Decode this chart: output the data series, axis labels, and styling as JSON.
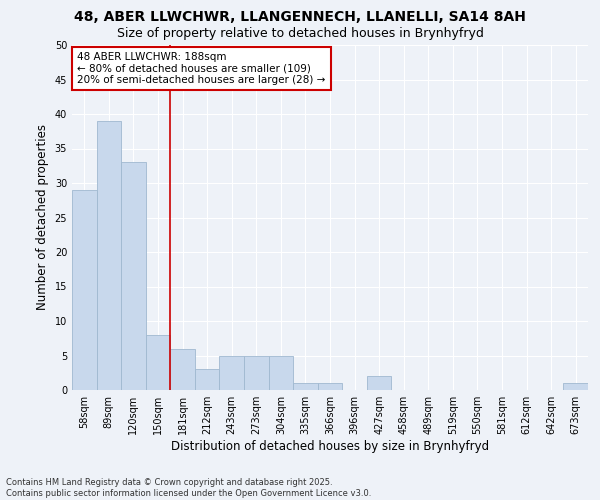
{
  "title1": "48, ABER LLWCHWR, LLANGENNECH, LLANELLI, SA14 8AH",
  "title2": "Size of property relative to detached houses in Brynhyfryd",
  "xlabel": "Distribution of detached houses by size in Brynhyfryd",
  "ylabel": "Number of detached properties",
  "categories": [
    "58sqm",
    "89sqm",
    "120sqm",
    "150sqm",
    "181sqm",
    "212sqm",
    "243sqm",
    "273sqm",
    "304sqm",
    "335sqm",
    "366sqm",
    "396sqm",
    "427sqm",
    "458sqm",
    "489sqm",
    "519sqm",
    "550sqm",
    "581sqm",
    "612sqm",
    "642sqm",
    "673sqm"
  ],
  "values": [
    29,
    39,
    33,
    8,
    6,
    3,
    5,
    5,
    5,
    1,
    1,
    0,
    2,
    0,
    0,
    0,
    0,
    0,
    0,
    0,
    1
  ],
  "bar_color": "#c8d8ec",
  "bar_edge_color": "#a0b8d0",
  "annotation_text": "48 ABER LLWCHWR: 188sqm\n← 80% of detached houses are smaller (109)\n20% of semi-detached houses are larger (28) →",
  "annotation_box_color": "#ffffff",
  "annotation_box_edge": "#cc0000",
  "vline_color": "#cc0000",
  "ylim": [
    0,
    50
  ],
  "yticks": [
    0,
    5,
    10,
    15,
    20,
    25,
    30,
    35,
    40,
    45,
    50
  ],
  "footnote": "Contains HM Land Registry data © Crown copyright and database right 2025.\nContains public sector information licensed under the Open Government Licence v3.0.",
  "background_color": "#eef2f8",
  "grid_color": "#ffffff",
  "title_fontsize": 10,
  "subtitle_fontsize": 9,
  "tick_fontsize": 7,
  "label_fontsize": 8.5,
  "annot_fontsize": 7.5,
  "footnote_fontsize": 6
}
